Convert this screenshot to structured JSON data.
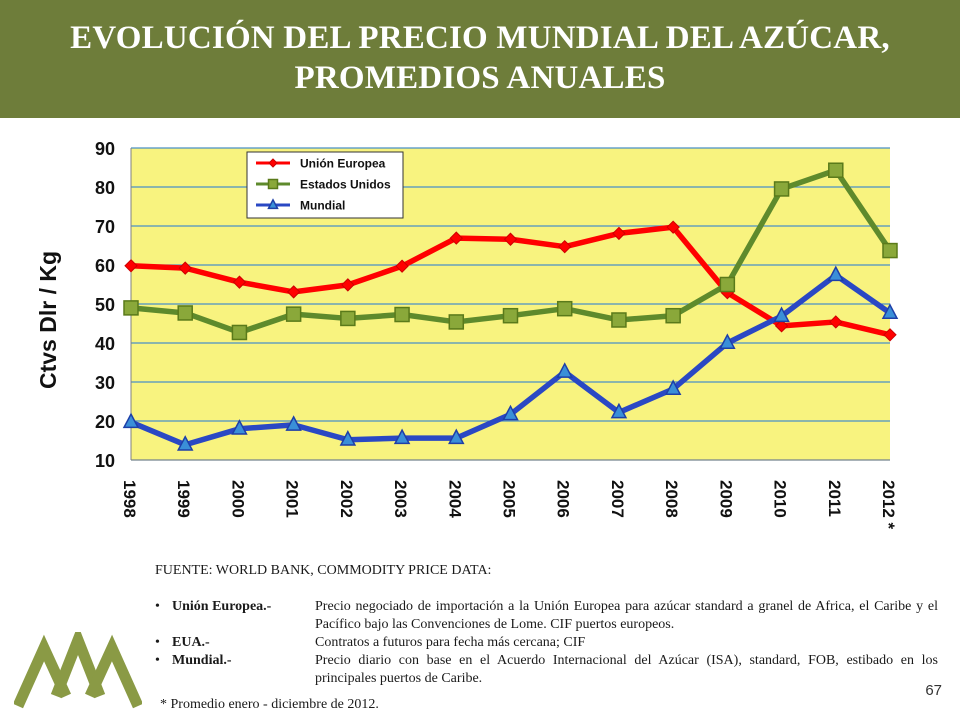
{
  "header": {
    "title": "EVOLUCIÓN DEL PRECIO MUNDIAL DEL AZÚCAR,\nPROMEDIOS ANUALES"
  },
  "colors": {
    "header_bg": "#6e7d3a",
    "plot_bg": "#f8f37f",
    "union_europea": "#ff0000",
    "estados_unidos": "#5e8a2c",
    "mundial": "#2a48c4"
  },
  "chart_data": {
    "type": "line",
    "ylabel": "Ctvs Dlr / Kg",
    "xlabel": "",
    "ylim": [
      10,
      90
    ],
    "yticks": [
      10,
      20,
      30,
      40,
      50,
      60,
      70,
      80,
      90
    ],
    "grid": true,
    "legend_position": "top-left",
    "categories": [
      "1998",
      "1999",
      "2000",
      "2001",
      "2002",
      "2003",
      "2004",
      "2005",
      "2006",
      "2007",
      "2008",
      "2009",
      "2010",
      "2011",
      "2012 *"
    ],
    "series": [
      {
        "name": "Unión Europea",
        "marker": "diamond",
        "values": [
          59.8,
          59.2,
          55.6,
          53.1,
          54.9,
          59.7,
          66.9,
          66.6,
          64.7,
          68.1,
          69.7,
          52.9,
          44.4,
          45.4,
          42.1
        ]
      },
      {
        "name": "Estados Unidos",
        "marker": "square",
        "values": [
          49.0,
          47.7,
          42.7,
          47.4,
          46.3,
          47.3,
          45.4,
          47.0,
          48.8,
          45.9,
          47.0,
          55.0,
          79.5,
          84.3,
          63.7
        ]
      },
      {
        "name": "Mundial",
        "marker": "triangle",
        "values": [
          19.7,
          13.9,
          18.0,
          19.0,
          15.2,
          15.6,
          15.6,
          21.7,
          32.6,
          22.2,
          28.2,
          40.0,
          46.9,
          57.4,
          47.7
        ]
      }
    ]
  },
  "notes": {
    "source": "FUENTE: WORLD BANK, COMMODITY PRICE DATA:",
    "items": [
      {
        "bullet": "•",
        "label": "Unión Europea.-",
        "text": "Precio negociado de importación a la Unión Europea para azúcar standard a granel de Africa, el Caribe y el Pacífico bajo las Convenciones de Lome. CIF puertos europeos."
      },
      {
        "bullet": "•",
        "label": "EUA.-",
        "text": "Contratos a futuros para fecha más cercana; CIF"
      },
      {
        "bullet": "•",
        "label": "Mundial.-",
        "text": "Precio diario con base en el Acuerdo Internacional del Azúcar (ISA), standard, FOB, estibado en los principales puertos de Caribe."
      }
    ],
    "footnote": "* Promedio enero - diciembre de 2012."
  },
  "page_number": "67"
}
